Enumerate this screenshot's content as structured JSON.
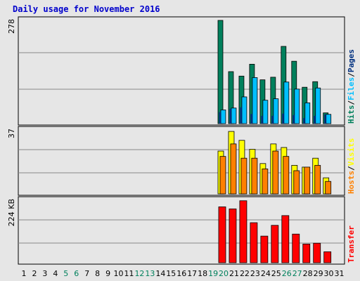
{
  "title": "Daily usage for November 2016",
  "colors": {
    "background": "#e6e6e6",
    "hits": "#00805c",
    "files": "#00bfff",
    "pages": "#00307f",
    "visits": "#ffff00",
    "hosts": "#ff8000",
    "kbytes": "#ff0000",
    "weekday": "#000000",
    "weekend": "#00805c"
  },
  "chart_data": [
    {
      "type": "bar",
      "panel": "hits-files-pages",
      "ylabel_parts": [
        "Hits",
        "/",
        "Files",
        "/",
        "Pages"
      ],
      "ytick": "278",
      "ylim": [
        0,
        278
      ],
      "categories": [
        "1",
        "2",
        "3",
        "4",
        "5",
        "6",
        "7",
        "8",
        "9",
        "10",
        "11",
        "12",
        "13",
        "14",
        "15",
        "16",
        "17",
        "18",
        "19",
        "20",
        "21",
        "22",
        "23",
        "24",
        "25",
        "26",
        "27",
        "28",
        "29",
        "30",
        "31"
      ],
      "weekend_days": [
        "5",
        "6",
        "12",
        "13",
        "19",
        "20",
        "26",
        "27"
      ],
      "series": [
        {
          "name": "Hits",
          "values": [
            0,
            0,
            0,
            0,
            0,
            0,
            0,
            0,
            0,
            0,
            0,
            0,
            0,
            0,
            0,
            0,
            0,
            0,
            0,
            278,
            140,
            128,
            160,
            118,
            125,
            208,
            168,
            98,
            113,
            29,
            0
          ]
        },
        {
          "name": "Files",
          "values": [
            0,
            0,
            0,
            0,
            0,
            0,
            0,
            0,
            0,
            0,
            0,
            0,
            0,
            0,
            0,
            0,
            0,
            0,
            0,
            37,
            42,
            72,
            124,
            63,
            67,
            112,
            93,
            56,
            96,
            25,
            0
          ]
        },
        {
          "name": "Pages",
          "values": [
            0,
            0,
            0,
            0,
            0,
            0,
            0,
            0,
            0,
            0,
            0,
            0,
            0,
            0,
            0,
            0,
            0,
            0,
            0,
            31,
            40,
            44,
            26,
            21,
            21,
            27,
            23,
            15,
            21,
            25,
            0
          ]
        }
      ]
    },
    {
      "type": "bar",
      "panel": "visits-hosts",
      "ylabel_parts": [
        "Hosts",
        "/",
        "Visits"
      ],
      "ytick": "37",
      "ylim": [
        0,
        37
      ],
      "categories": [
        "1",
        "2",
        "3",
        "4",
        "5",
        "6",
        "7",
        "8",
        "9",
        "10",
        "11",
        "12",
        "13",
        "14",
        "15",
        "16",
        "17",
        "18",
        "19",
        "20",
        "21",
        "22",
        "23",
        "24",
        "25",
        "26",
        "27",
        "28",
        "29",
        "30",
        "31"
      ],
      "series": [
        {
          "name": "Visits",
          "values": [
            0,
            0,
            0,
            0,
            0,
            0,
            0,
            0,
            0,
            0,
            0,
            0,
            0,
            0,
            0,
            0,
            0,
            0,
            0,
            24,
            35,
            30,
            25,
            17,
            28,
            26,
            16,
            15,
            20,
            9,
            0
          ]
        },
        {
          "name": "Hosts",
          "values": [
            0,
            0,
            0,
            0,
            0,
            0,
            0,
            0,
            0,
            0,
            0,
            0,
            0,
            0,
            0,
            0,
            0,
            0,
            0,
            21,
            28,
            20,
            20,
            14,
            24,
            21,
            13,
            15,
            16,
            7,
            0
          ]
        }
      ]
    },
    {
      "type": "bar",
      "panel": "transfer",
      "ylabel_parts": [
        "Transfer"
      ],
      "ytick": "224 KB",
      "ylim": [
        0,
        318
      ],
      "categories": [
        "1",
        "2",
        "3",
        "4",
        "5",
        "6",
        "7",
        "8",
        "9",
        "10",
        "11",
        "12",
        "13",
        "14",
        "15",
        "16",
        "17",
        "18",
        "19",
        "20",
        "21",
        "22",
        "23",
        "24",
        "25",
        "26",
        "27",
        "28",
        "29",
        "30",
        "31"
      ],
      "series": [
        {
          "name": "Transfer",
          "values": [
            0,
            0,
            0,
            0,
            0,
            0,
            0,
            0,
            0,
            0,
            0,
            0,
            0,
            0,
            0,
            0,
            0,
            0,
            0,
            275,
            265,
            305,
            197,
            131,
            184,
            232,
            141,
            92,
            96,
            54,
            0
          ]
        }
      ]
    }
  ]
}
